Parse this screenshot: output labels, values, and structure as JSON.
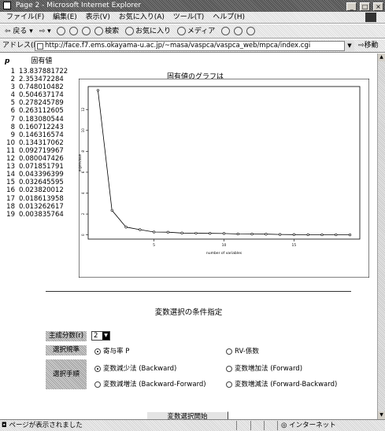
{
  "window": {
    "title": "Page 2 - Microsoft Internet Explorer",
    "min": "_",
    "max": "□",
    "close": "×"
  },
  "menu": [
    "ファイル(F)",
    "編集(E)",
    "表示(V)",
    "お気に入り(A)",
    "ツール(T)",
    "ヘルプ(H)"
  ],
  "toolbar": {
    "back": "戻る",
    "search": "検索",
    "favorites": "お気に入り",
    "media": "メディア"
  },
  "address": {
    "label": "アドレス(D)",
    "url": "http://face.f7.ems.okayama-u.ac.jp/~masa/vaspca/vaspca_web/mpca/index.cgi",
    "go": "移動"
  },
  "eigen": {
    "p_label": "p",
    "header": "固有値",
    "rows": [
      {
        "n": "1",
        "v": "13.837881722"
      },
      {
        "n": "2",
        "v": "2.353472284"
      },
      {
        "n": "3",
        "v": "0.748010482"
      },
      {
        "n": "4",
        "v": "0.504637174"
      },
      {
        "n": "5",
        "v": "0.278245789"
      },
      {
        "n": "6",
        "v": "0.263112605"
      },
      {
        "n": "7",
        "v": "0.183080544"
      },
      {
        "n": "8",
        "v": "0.160712243"
      },
      {
        "n": "9",
        "v": "0.146316574"
      },
      {
        "n": "10",
        "v": "0.134317062"
      },
      {
        "n": "11",
        "v": "0.092719967"
      },
      {
        "n": "12",
        "v": "0.080047426"
      },
      {
        "n": "13",
        "v": "0.071851791"
      },
      {
        "n": "14",
        "v": "0.043396399"
      },
      {
        "n": "15",
        "v": "0.032645595"
      },
      {
        "n": "16",
        "v": "0.023820012"
      },
      {
        "n": "17",
        "v": "0.018613958"
      },
      {
        "n": "18",
        "v": "0.013262617"
      },
      {
        "n": "19",
        "v": "0.003835764"
      }
    ]
  },
  "graph_title": "固有値のグラフは",
  "chart_data": {
    "type": "line",
    "title": "",
    "xlabel": "number of variables",
    "ylabel": "eigenvalue",
    "x": [
      1,
      2,
      3,
      4,
      5,
      6,
      7,
      8,
      9,
      10,
      11,
      12,
      13,
      14,
      15,
      16,
      17,
      18,
      19
    ],
    "values": [
      13.837881722,
      2.353472284,
      0.748010482,
      0.504637174,
      0.278245789,
      0.263112605,
      0.183080544,
      0.160712243,
      0.146316574,
      0.134317062,
      0.092719967,
      0.080047426,
      0.071851791,
      0.043396399,
      0.032645595,
      0.023820012,
      0.018613958,
      0.013262617,
      0.003835764
    ],
    "xticks": [
      "5",
      "10",
      "15"
    ],
    "yticks": [
      "0",
      "2",
      "4",
      "6",
      "8",
      "10",
      "12"
    ],
    "xlim": [
      0.3,
      19.7
    ],
    "ylim": [
      -0.4,
      14.2
    ],
    "grid": false
  },
  "conditions": {
    "title": "変数選択の条件指定",
    "n_components_label": "主成分数(r)",
    "n_components_value": "2",
    "criterion_label": "選択規準",
    "criterion_options": [
      "寄与率 P",
      "RV-係数"
    ],
    "method_label": "選択手順",
    "method_options": [
      "変数減少法 (Backward)",
      "変数増加法 (Forward)",
      "変数減増法 (Backward-Forward)",
      "変数増減法 (Forward-Backward)"
    ],
    "submit": "変数選択開始"
  },
  "status": {
    "text": "ページが表示されました",
    "zone": "インターネット"
  }
}
